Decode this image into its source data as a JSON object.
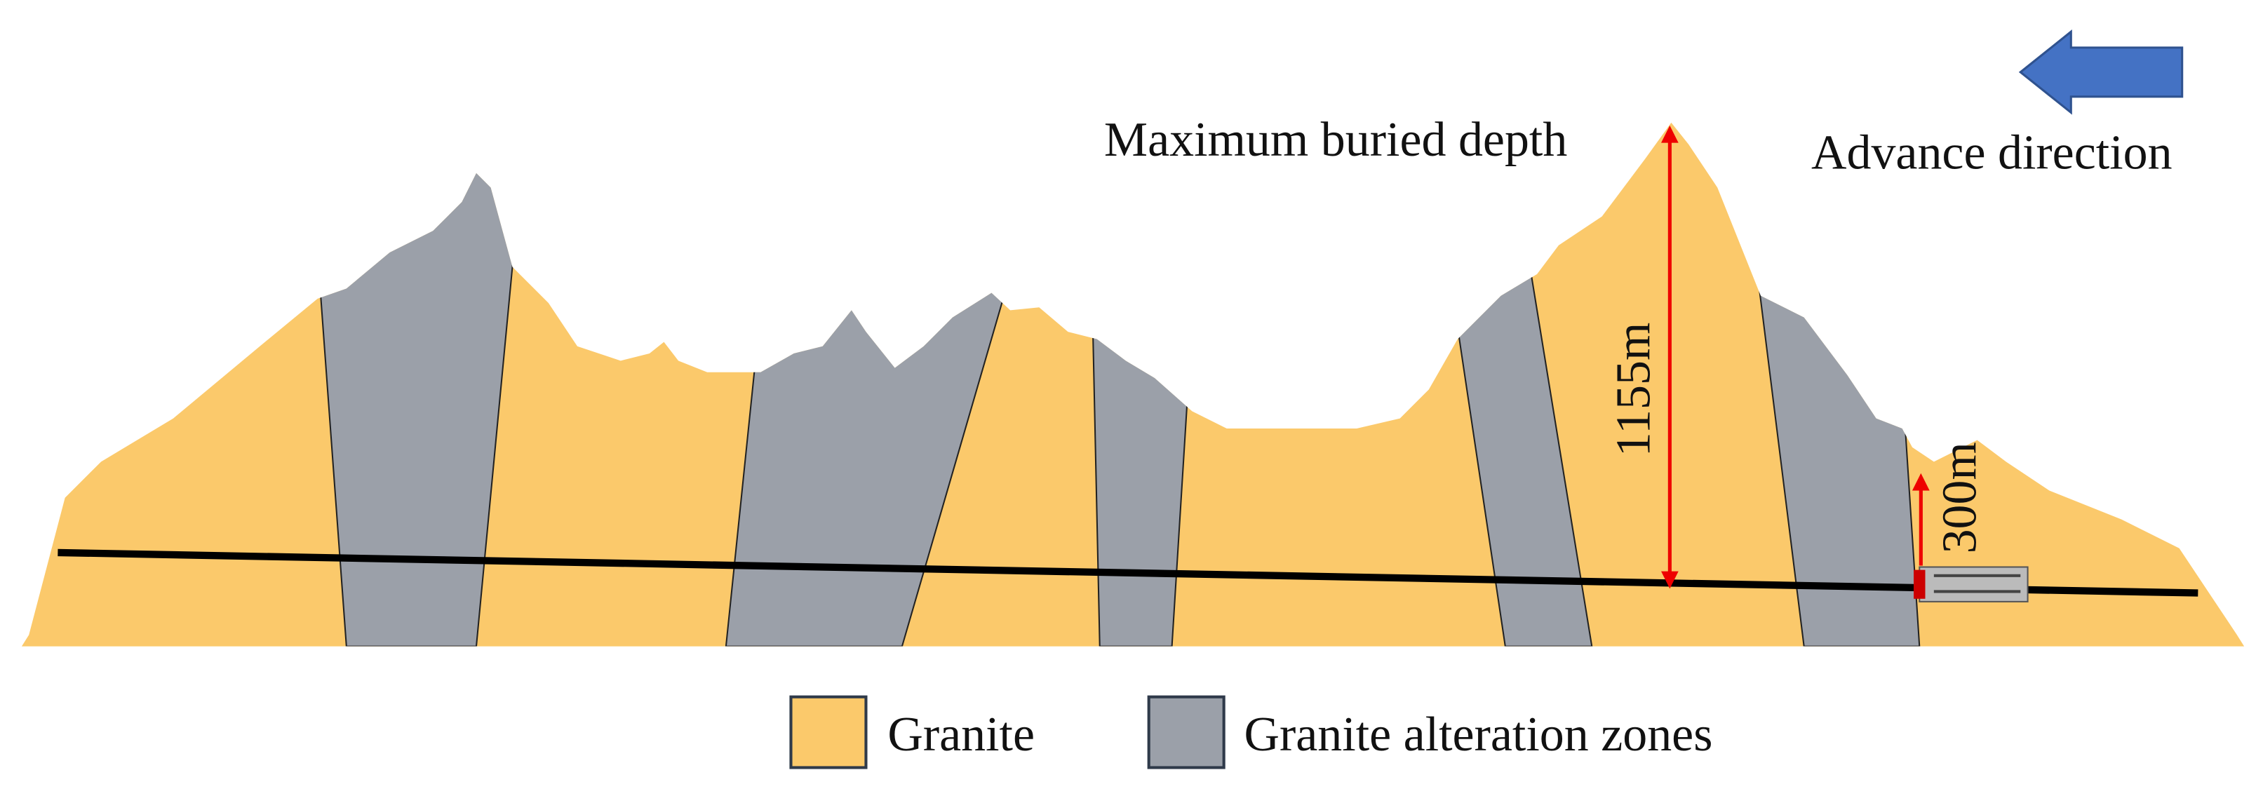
{
  "labels": {
    "max_depth": "Maximum buried depth",
    "direction": "Advance direction",
    "depth_max_value": "1155m",
    "depth_portal_value": "300m"
  },
  "legend": {
    "items": [
      {
        "label": "Granite"
      },
      {
        "label": "Granite alteration zones"
      }
    ]
  }
}
